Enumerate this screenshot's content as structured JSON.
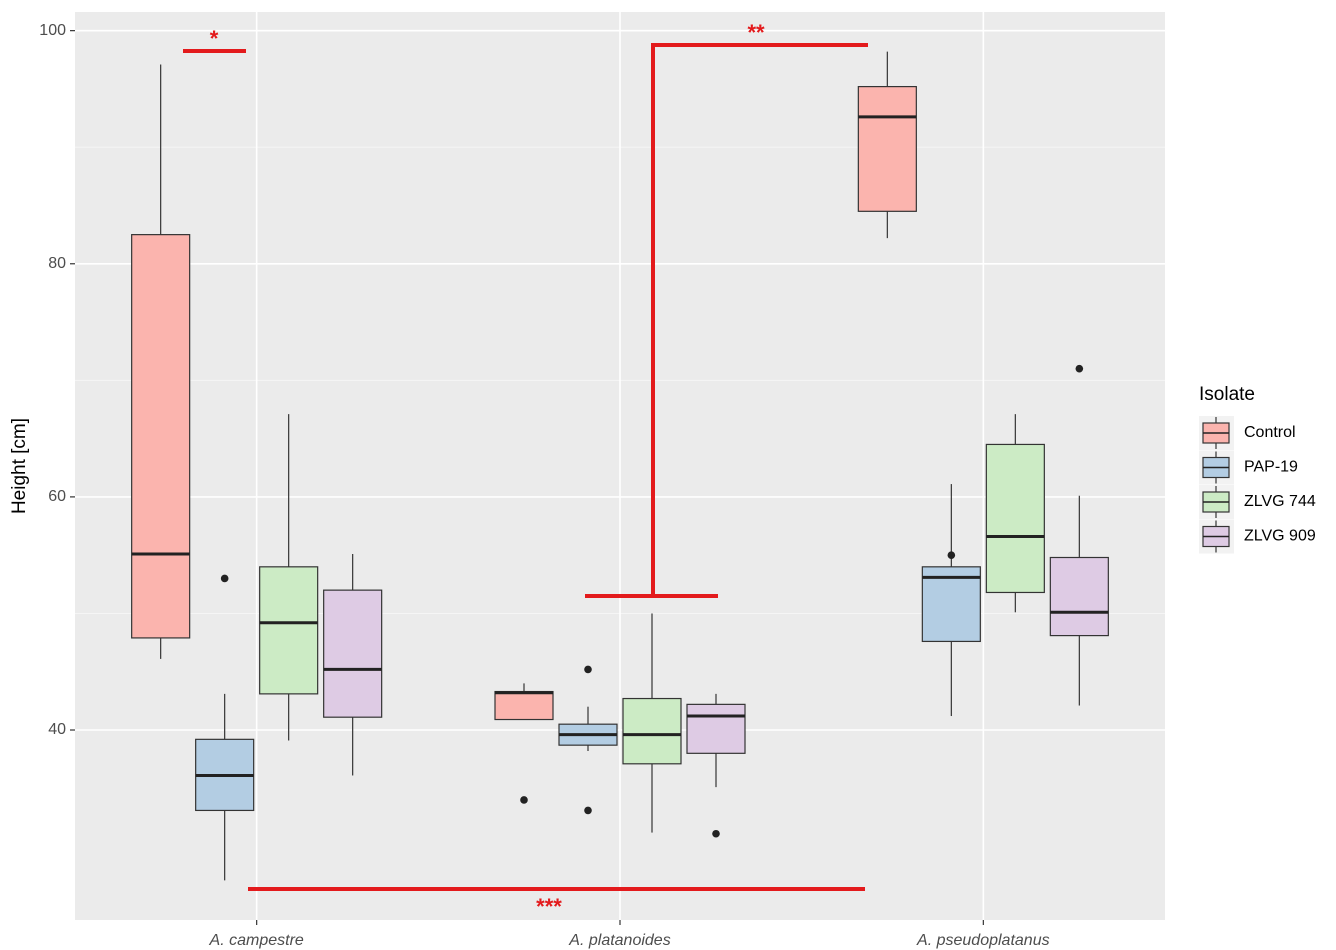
{
  "chart_data": {
    "type": "boxplot",
    "y_label": "Height [cm]",
    "legend_title": "Isolate",
    "categories": [
      "A. campestre",
      "A. platanoides",
      "A. pseudoplatanus"
    ],
    "ylim": [
      23.7,
      101.6
    ],
    "yticks": [
      40,
      60,
      80,
      100
    ],
    "grid": true,
    "legend": "right",
    "series": [
      {
        "name": "Control",
        "color": "#fbb4ae",
        "boxes": [
          {
            "min": 46.1,
            "q1": 47.9,
            "median": 55.1,
            "q3": 82.5,
            "max": 97.1,
            "outliers": []
          },
          {
            "min": 40.9,
            "q1": 40.9,
            "median": 43.2,
            "q3": 43.3,
            "max": 44.0,
            "outliers": [
              34.0
            ]
          },
          {
            "min": 82.2,
            "q1": 84.5,
            "median": 92.6,
            "q3": 95.2,
            "max": 98.2,
            "outliers": []
          }
        ]
      },
      {
        "name": "PAP-19",
        "color": "#b3cde3",
        "boxes": [
          {
            "min": 27.1,
            "q1": 33.1,
            "median": 36.1,
            "q3": 39.2,
            "max": 43.1,
            "outliers": [
              53.0
            ]
          },
          {
            "min": 38.2,
            "q1": 38.7,
            "median": 39.6,
            "q3": 40.5,
            "max": 42.0,
            "outliers": [
              45.2,
              33.1
            ]
          },
          {
            "min": 41.2,
            "q1": 47.6,
            "median": 53.1,
            "q3": 54.0,
            "max": 61.1,
            "outliers": [
              55.0
            ]
          }
        ]
      },
      {
        "name": "ZLVG 744",
        "color": "#ccebc5",
        "boxes": [
          {
            "min": 39.1,
            "q1": 43.1,
            "median": 49.2,
            "q3": 54.0,
            "max": 67.1,
            "outliers": []
          },
          {
            "min": 31.2,
            "q1": 37.1,
            "median": 39.6,
            "q3": 42.7,
            "max": 50.0,
            "outliers": []
          },
          {
            "min": 50.1,
            "q1": 51.8,
            "median": 56.6,
            "q3": 64.5,
            "max": 67.1,
            "outliers": []
          }
        ]
      },
      {
        "name": "ZLVG 909",
        "color": "#decbe4",
        "boxes": [
          {
            "min": 36.1,
            "q1": 41.1,
            "median": 45.2,
            "q3": 52.0,
            "max": 55.1,
            "outliers": []
          },
          {
            "min": 35.1,
            "q1": 38.0,
            "median": 41.2,
            "q3": 42.2,
            "max": 43.1,
            "outliers": [
              31.1
            ]
          },
          {
            "min": 42.1,
            "q1": 48.1,
            "median": 50.1,
            "q3": 54.8,
            "max": 60.1,
            "outliers": [
              71.0
            ]
          }
        ]
      }
    ],
    "annotations": [
      "*",
      "**",
      "***"
    ]
  }
}
